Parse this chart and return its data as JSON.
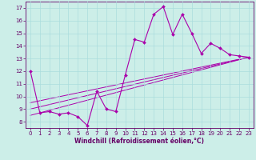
{
  "xlabel": "Windchill (Refroidissement éolien,°C)",
  "bg_color": "#cceee8",
  "grid_color": "#aadddd",
  "line_color": "#aa00aa",
  "tick_color": "#660066",
  "xlim": [
    -0.5,
    23.5
  ],
  "ylim": [
    7.5,
    17.5
  ],
  "yticks": [
    8,
    9,
    10,
    11,
    12,
    13,
    14,
    15,
    16,
    17
  ],
  "xticks": [
    0,
    1,
    2,
    3,
    4,
    5,
    6,
    7,
    8,
    9,
    10,
    11,
    12,
    13,
    14,
    15,
    16,
    17,
    18,
    19,
    20,
    21,
    22,
    23
  ],
  "series1_x": [
    0,
    1,
    2,
    3,
    4,
    5,
    6,
    7,
    8,
    9,
    10,
    11,
    12,
    13,
    14,
    15,
    16,
    17,
    18,
    19,
    20,
    21,
    22,
    23
  ],
  "series1_y": [
    12.0,
    8.7,
    8.8,
    8.6,
    8.7,
    8.4,
    7.7,
    10.4,
    9.0,
    8.8,
    11.7,
    14.5,
    14.3,
    16.5,
    17.1,
    14.9,
    16.5,
    15.0,
    13.4,
    14.2,
    13.8,
    13.3,
    13.2,
    13.1
  ],
  "series2_x": [
    0,
    23
  ],
  "series2_y": [
    8.5,
    13.1
  ],
  "series3_x": [
    0,
    23
  ],
  "series3_y": [
    9.0,
    13.1
  ],
  "series4_x": [
    0,
    23
  ],
  "series4_y": [
    9.5,
    13.1
  ]
}
